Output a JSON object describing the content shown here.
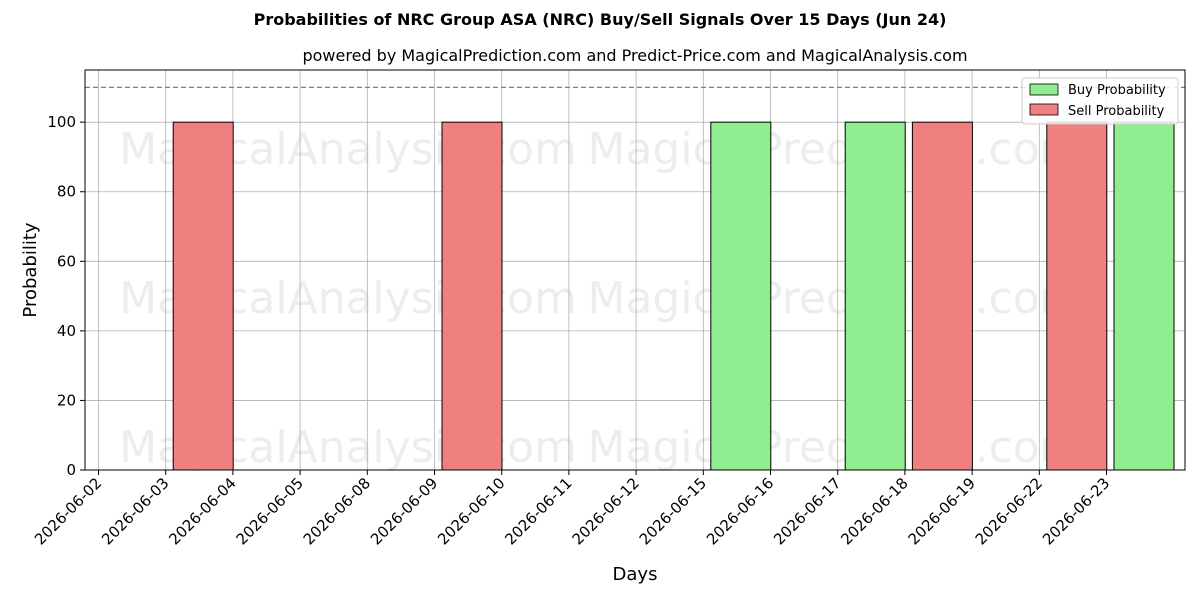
{
  "chart_data": {
    "type": "bar",
    "title": "Probabilities of NRC Group ASA (NRC) Buy/Sell Signals Over 15 Days (Jun 24)",
    "subtitle": "powered by MagicalPrediction.com and Predict-Price.com and MagicalAnalysis.com",
    "xlabel": "Days",
    "ylabel": "Probability",
    "ylim": [
      0,
      115
    ],
    "yticks": [
      0,
      20,
      40,
      60,
      80,
      100
    ],
    "reference_line": 110,
    "grid": true,
    "legend_position": "top-right",
    "categories": [
      "2026-06-02",
      "2026-06-03",
      "2026-06-04",
      "2026-06-05",
      "2026-06-08",
      "2026-06-09",
      "2026-06-10",
      "2026-06-11",
      "2026-06-12",
      "2026-06-15",
      "2026-06-16",
      "2026-06-17",
      "2026-06-18",
      "2026-06-19",
      "2026-06-22",
      "2026-06-23"
    ],
    "series": [
      {
        "name": "Buy Probability",
        "color": "#90ee90",
        "values": [
          0,
          0,
          0,
          0,
          0,
          0,
          0,
          0,
          0,
          100,
          0,
          100,
          0,
          0,
          0,
          100
        ]
      },
      {
        "name": "Sell Probability",
        "color": "#f08080",
        "values": [
          0,
          100,
          0,
          0,
          0,
          100,
          0,
          0,
          0,
          0,
          0,
          0,
          100,
          0,
          100,
          0
        ]
      }
    ],
    "watermarks": [
      "MagicalAnalysis.com",
      "MagicalPrediction.com"
    ]
  }
}
